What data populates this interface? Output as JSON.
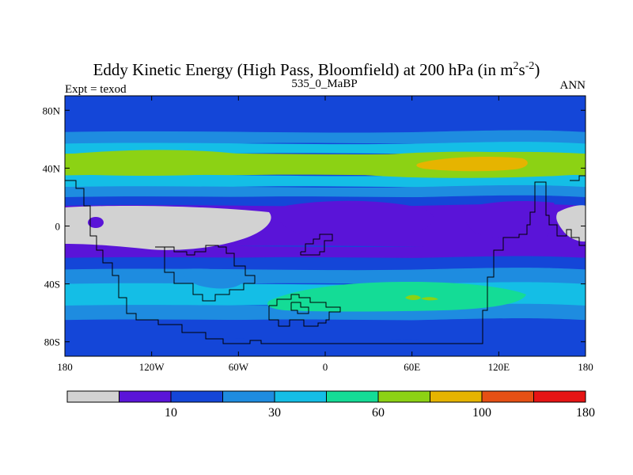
{
  "chart_data": {
    "type": "heatmap",
    "title_main": "Eddy Kinetic Energy (High Pass, Bloomfield) at 200 hPa (in m",
    "title_sup1": "2",
    "title_s": "s",
    "title_sup2": "-2",
    "title_close": ")",
    "subtitle_center": "535_0_MaBP",
    "subtitle_left": "Expt = texod",
    "subtitle_right": "ANN",
    "x_range": [
      -180,
      180
    ],
    "y_range": [
      -90,
      90
    ],
    "x_ticks": [
      {
        "value": -180,
        "label": "180"
      },
      {
        "value": -120,
        "label": "120W"
      },
      {
        "value": -60,
        "label": "60W"
      },
      {
        "value": 0,
        "label": "0"
      },
      {
        "value": 60,
        "label": "60E"
      },
      {
        "value": 120,
        "label": "120E"
      },
      {
        "value": 180,
        "label": "180"
      }
    ],
    "y_ticks": [
      {
        "value": 80,
        "label": "80N"
      },
      {
        "value": 40,
        "label": "40N"
      },
      {
        "value": 0,
        "label": "0"
      },
      {
        "value": -40,
        "label": "40S"
      },
      {
        "value": -80,
        "label": "80S"
      }
    ],
    "colorbar": {
      "colors": [
        "#d2d2d2",
        "#5a14d8",
        "#1446d8",
        "#1e8ce0",
        "#14bee6",
        "#14dc96",
        "#8cd214",
        "#e6b400",
        "#e65014",
        "#e61414"
      ],
      "labels": [
        {
          "after_bin": 1,
          "label": "10"
        },
        {
          "after_bin": 3,
          "label": "30"
        },
        {
          "after_bin": 5,
          "label": "60"
        },
        {
          "after_bin": 7,
          "label": "100"
        },
        {
          "after_bin": 9,
          "label": "180"
        }
      ]
    },
    "bands": [
      {
        "lat": [
          65,
          90
        ],
        "level": 2
      },
      {
        "lat": [
          57,
          65
        ],
        "level": 3
      },
      {
        "lat": [
          50,
          57
        ],
        "level": 4
      },
      {
        "lat": [
          35,
          50
        ],
        "level": 6
      },
      {
        "lat": [
          27,
          35
        ],
        "level": 4
      },
      {
        "lat": [
          20,
          27
        ],
        "level": 3
      },
      {
        "lat": [
          14,
          20
        ],
        "level": 2
      },
      {
        "lat": [
          -14,
          14
        ],
        "level": 1
      },
      {
        "lat": [
          -22,
          -14
        ],
        "level": 1
      },
      {
        "lat": [
          -30,
          -22
        ],
        "level": 2
      },
      {
        "lat": [
          -40,
          -30
        ],
        "level": 3
      },
      {
        "lat": [
          -55,
          -40
        ],
        "level": 4
      },
      {
        "lat": [
          -65,
          -55
        ],
        "level": 3
      },
      {
        "lat": [
          -78,
          -65
        ],
        "level": 2
      },
      {
        "lat": [
          -90,
          -78
        ],
        "level": 2
      }
    ]
  }
}
